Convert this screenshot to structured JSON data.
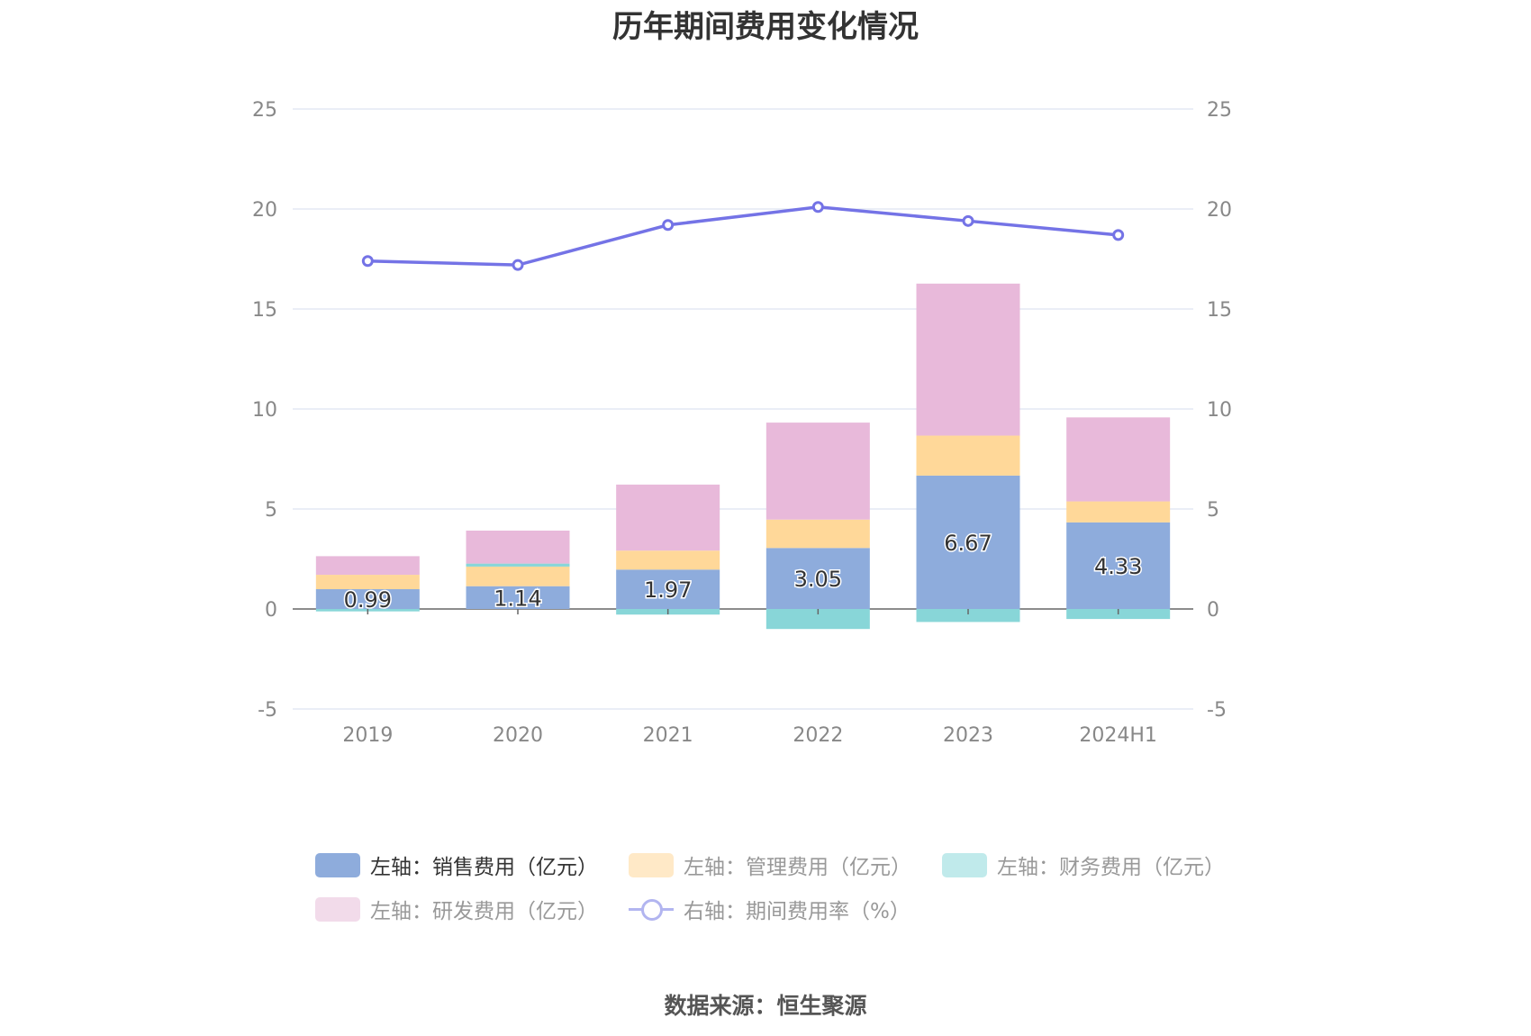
{
  "title": "历年期间费用变化情况",
  "source": "数据来源：恒生聚源",
  "chart_data": {
    "type": "bar",
    "stacked": true,
    "categories": [
      "2019",
      "2020",
      "2021",
      "2022",
      "2023",
      "2024H1"
    ],
    "series": [
      {
        "name": "左轴：销售费用（亿元）",
        "axis": "left",
        "color": "#8eacdc",
        "values": [
          0.99,
          1.14,
          1.97,
          3.05,
          6.67,
          4.33
        ],
        "labels": [
          "0.99",
          "1.14",
          "1.97",
          "3.05",
          "6.67",
          "4.33"
        ]
      },
      {
        "name": "左轴：管理费用（亿元）",
        "axis": "left",
        "color": "#ffd899",
        "values": [
          0.72,
          0.98,
          0.95,
          1.42,
          2.0,
          1.05
        ]
      },
      {
        "name": "左轴：财务费用（亿元）",
        "axis": "left",
        "color": "#88d6d8",
        "values": [
          -0.12,
          0.15,
          -0.28,
          -1.0,
          -0.65,
          -0.5
        ]
      },
      {
        "name": "左轴：研发费用（亿元）",
        "axis": "left",
        "color": "#e8b9da",
        "values": [
          0.93,
          1.65,
          3.3,
          4.85,
          7.6,
          4.2
        ]
      },
      {
        "name": "右轴：期间费用率（%）",
        "axis": "right",
        "type": "line",
        "color": "#7473e6",
        "values": [
          17.4,
          17.2,
          19.2,
          20.1,
          19.4,
          18.7
        ]
      }
    ],
    "left_axis": {
      "ylim": [
        -5,
        25
      ],
      "ticks": [
        "25",
        "20",
        "15",
        "10",
        "5",
        "0",
        "-5"
      ]
    },
    "right_axis": {
      "ylim": [
        -5,
        25
      ],
      "ticks": [
        "25",
        "20",
        "15",
        "10",
        "5",
        "0",
        "-5"
      ]
    },
    "grid": true,
    "legend_position": "bottom"
  }
}
